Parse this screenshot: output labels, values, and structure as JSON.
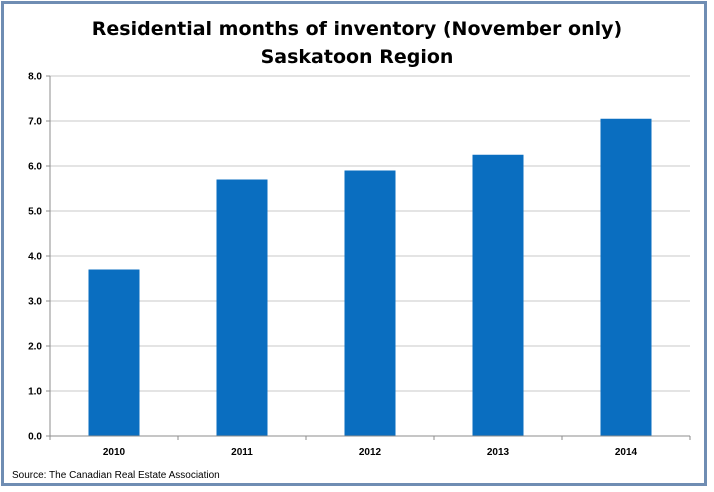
{
  "chart_data": {
    "type": "bar",
    "title": "Residential months of inventory (November only)",
    "subtitle": "Saskatoon Region",
    "categories": [
      "2010",
      "2011",
      "2012",
      "2013",
      "2014"
    ],
    "values": [
      3.7,
      5.7,
      5.9,
      6.25,
      7.05
    ],
    "ylim": [
      0,
      8
    ],
    "yticks": [
      "0.0",
      "1.0",
      "2.0",
      "3.0",
      "4.0",
      "5.0",
      "6.0",
      "7.0",
      "8.0"
    ],
    "xlabel": "",
    "ylabel": "",
    "grid": true,
    "colors": {
      "bar": "#0a6ec0",
      "grid": "#c8c8c8",
      "axis": "#8c8c8c",
      "frame": "#6f8db3"
    }
  },
  "source_note": "Source: The Canadian Real Estate Association"
}
